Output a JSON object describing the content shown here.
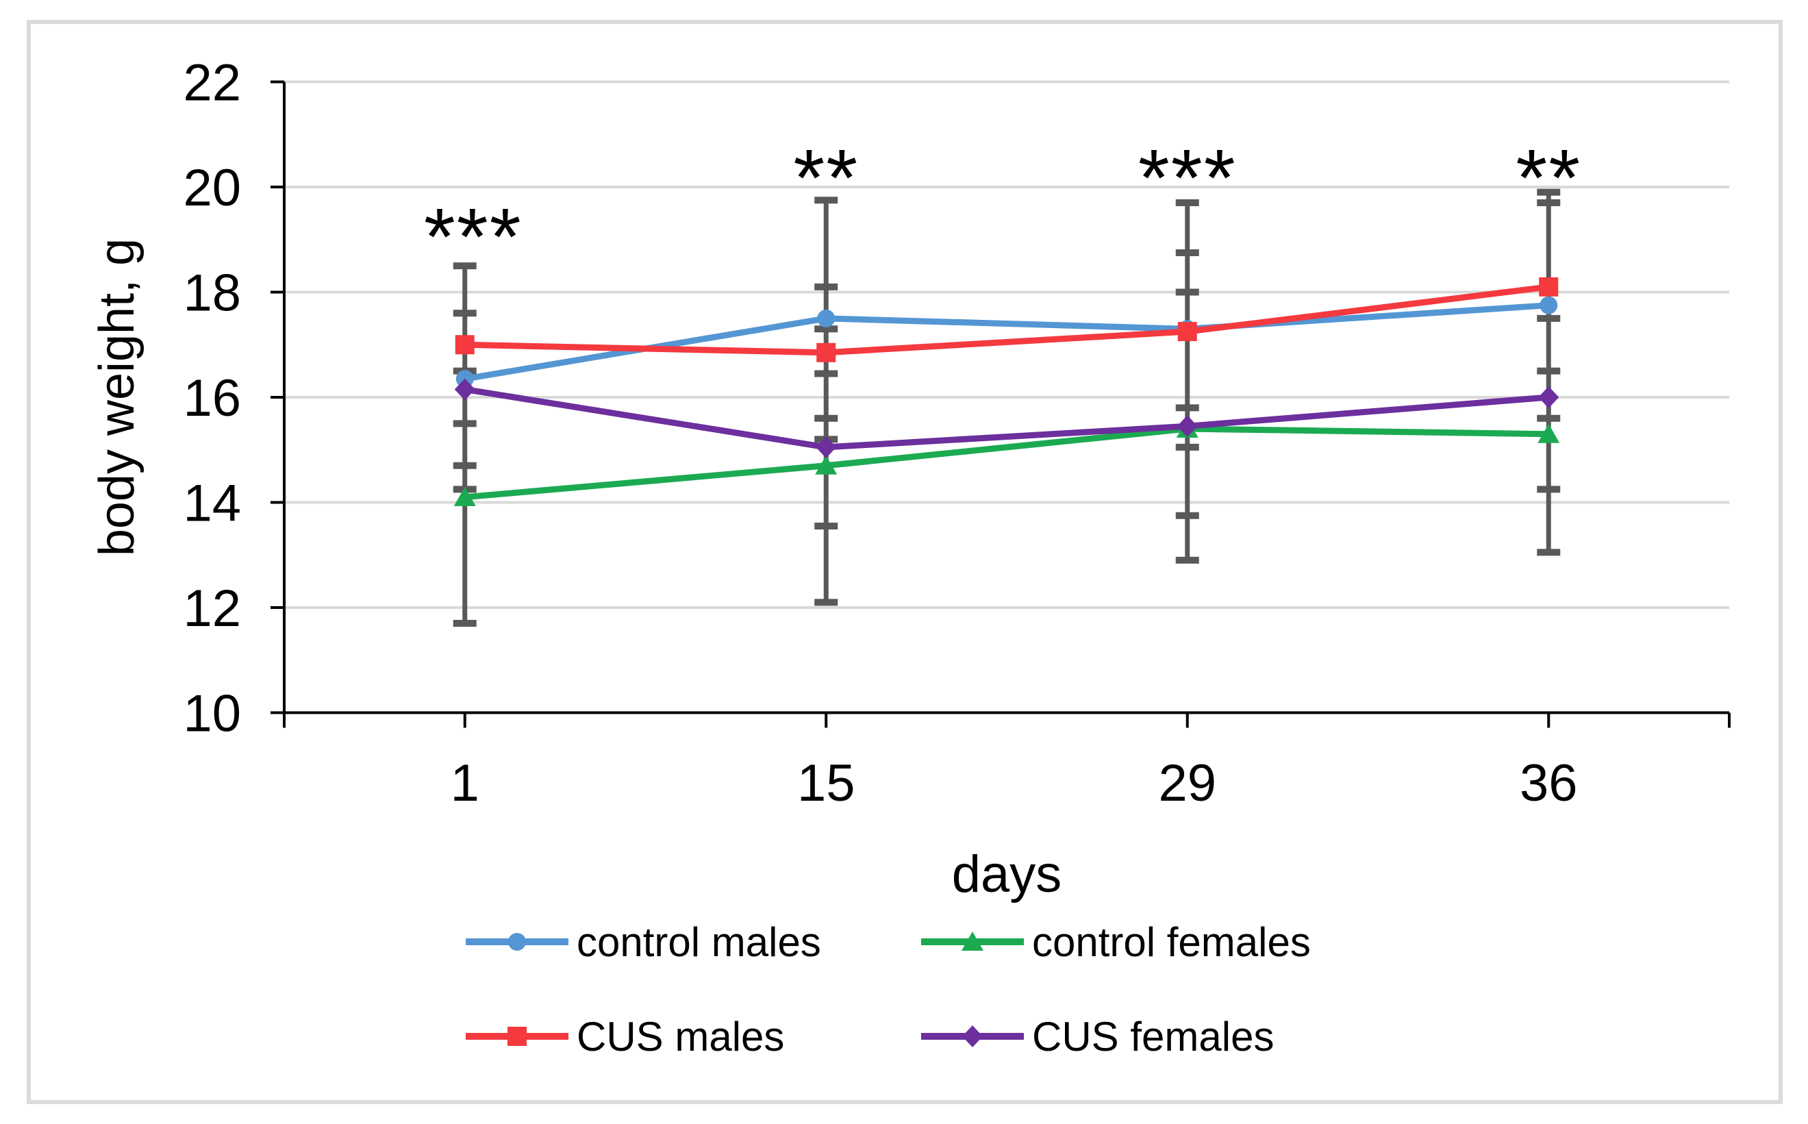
{
  "figure": {
    "background": "#FFFFFF",
    "border_color": "#DBDBDB",
    "text_color": "#000000"
  },
  "chart_data": {
    "type": "line",
    "title": "",
    "xlabel": "days",
    "ylabel": "body weight, g",
    "categories": [
      "1",
      "15",
      "29",
      "36"
    ],
    "ylim": [
      10,
      22
    ],
    "yticks": [
      10,
      12,
      14,
      16,
      18,
      20,
      22
    ],
    "grid": "horizontal",
    "gridline_color": "#D9D9D9",
    "axis_color": "#000000",
    "legend_position": "bottom-two-columns",
    "series": [
      {
        "name": "control males",
        "marker": "circle",
        "color": "#5496D3",
        "values": [
          16.35,
          17.5,
          17.3,
          17.75
        ]
      },
      {
        "name": "control females",
        "marker": "triangle",
        "color": "#1BAA51",
        "values": [
          14.1,
          14.7,
          15.4,
          15.3
        ]
      },
      {
        "name": "CUS males",
        "marker": "square",
        "color": "#F4393F",
        "values": [
          17.0,
          16.85,
          17.25,
          18.1
        ]
      },
      {
        "name": "CUS females",
        "marker": "diamond",
        "color": "#6C2F9D",
        "values": [
          16.15,
          15.05,
          15.45,
          16.0
        ]
      }
    ],
    "error_bars": {
      "color": "#595959",
      "per_category": [
        {
          "category": "1",
          "span": [
            11.7,
            18.5
          ],
          "caps": [
            18.5,
            17.6,
            16.5,
            15.5,
            14.7,
            14.25,
            11.7
          ]
        },
        {
          "category": "15",
          "span": [
            12.1,
            19.75
          ],
          "caps": [
            19.75,
            18.1,
            17.3,
            16.45,
            15.6,
            15.2,
            13.55,
            12.1
          ]
        },
        {
          "category": "29",
          "span": [
            12.9,
            19.7
          ],
          "caps": [
            19.7,
            18.75,
            18.0,
            15.8,
            15.05,
            13.75,
            12.9
          ]
        },
        {
          "category": "36",
          "span": [
            13.05,
            19.9
          ],
          "caps": [
            19.9,
            19.7,
            17.5,
            16.5,
            15.6,
            14.25,
            13.05
          ]
        }
      ]
    },
    "annotations": [
      {
        "category": "1",
        "text": "***",
        "y": 19.48,
        "dx": 12
      },
      {
        "category": "15",
        "text": "**",
        "y": 20.6,
        "dx": 0
      },
      {
        "category": "29",
        "text": "***",
        "y": 20.6,
        "dx": 0
      },
      {
        "category": "36",
        "text": "**",
        "y": 20.6,
        "dx": 0
      }
    ],
    "legend": {
      "items": [
        "control males",
        "control females",
        "CUS males",
        "CUS females"
      ]
    }
  }
}
